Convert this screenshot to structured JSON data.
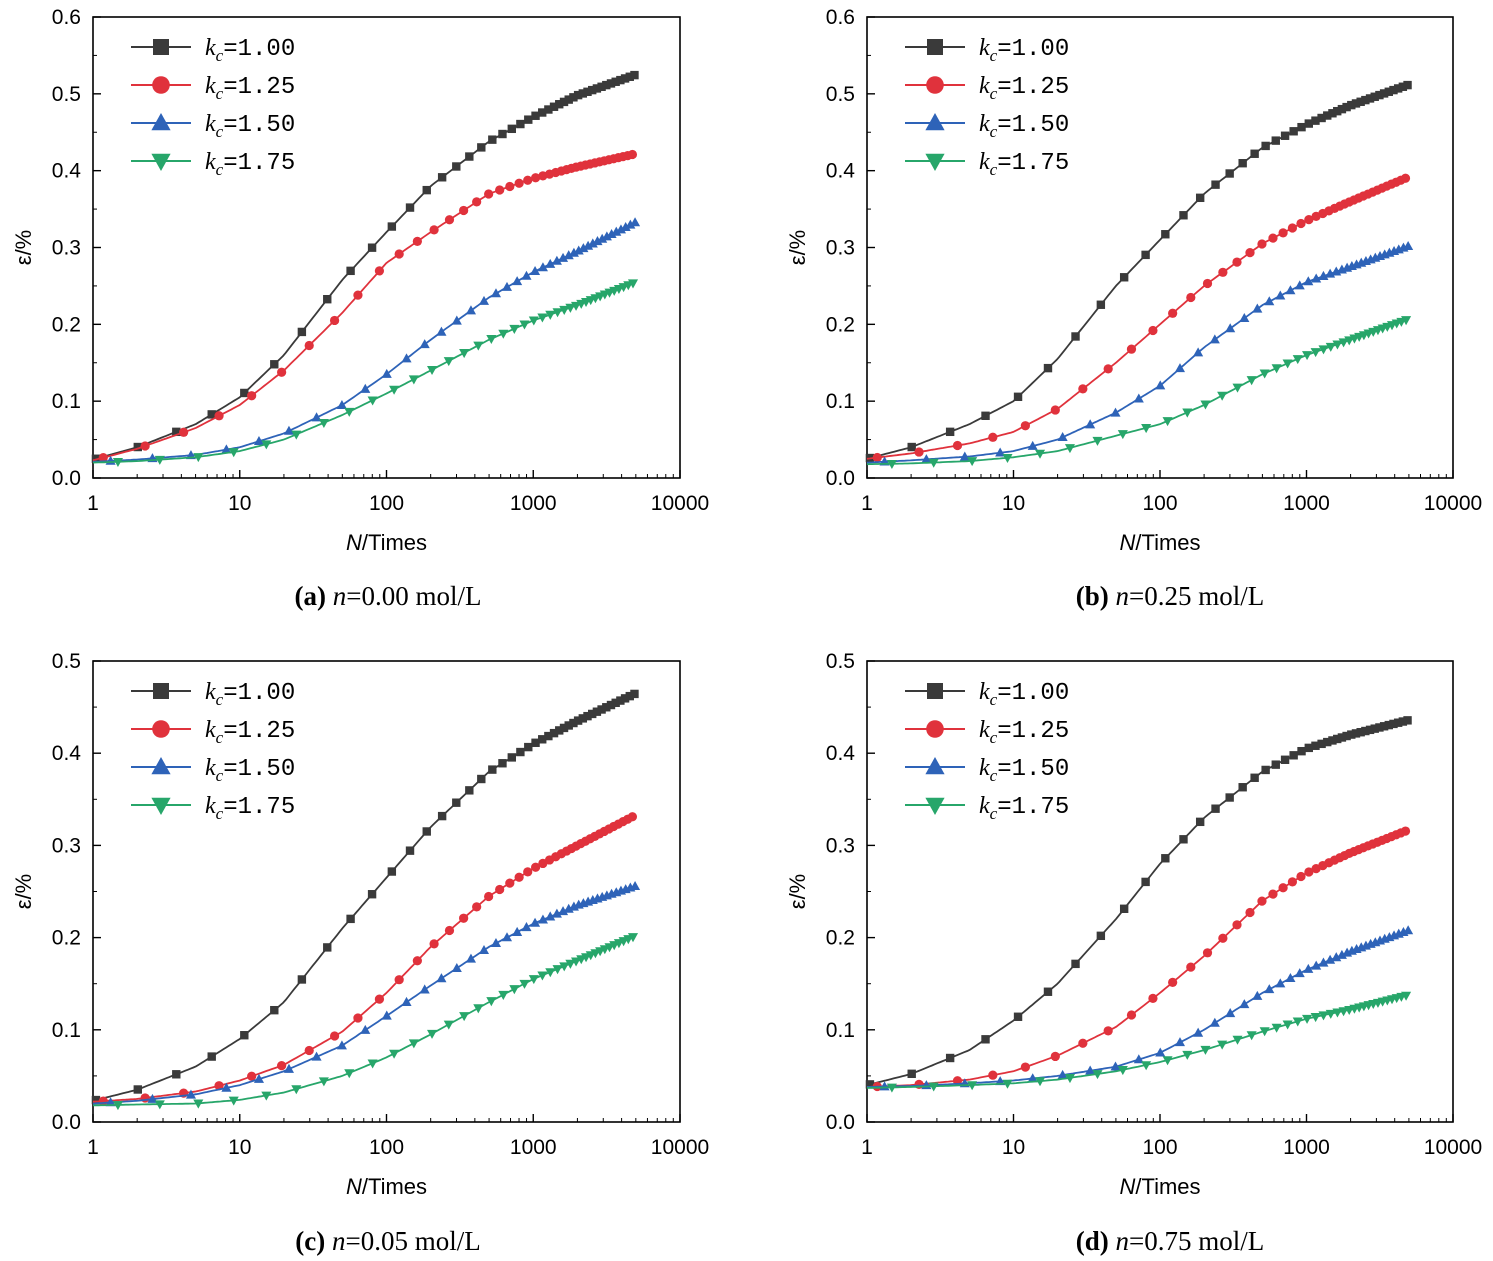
{
  "chart_data": [
    {
      "type": "line",
      "panel": "a",
      "caption": {
        "letter": "(a)",
        "var": "n",
        "value": "=0.00 mol/L"
      },
      "xlabel": {
        "var": "N",
        "unit": "/Times"
      },
      "ylabel": "ε/%",
      "xscale": "log",
      "xlim": [
        1,
        10000
      ],
      "ylim": [
        0,
        0.6
      ],
      "xticks": [
        1,
        10,
        100,
        1000,
        10000
      ],
      "xtick_labels": [
        "1",
        "10",
        "100",
        "1000",
        "10000"
      ],
      "yticks": [
        0,
        0.1,
        0.2,
        0.3,
        0.4,
        0.5,
        0.6
      ],
      "ytick_labels": [
        "0.0",
        "0.1",
        "0.2",
        "0.3",
        "0.4",
        "0.5",
        "0.6"
      ],
      "legend_position": "top-left",
      "series": [
        {
          "name": "kc=1.00",
          "label_sub": "c",
          "label_value": "=1.00",
          "color": "#3a3a3a",
          "marker": "square",
          "x": [
            1,
            2,
            5,
            10,
            20,
            50,
            100,
            200,
            500,
            1000,
            2000,
            5000
          ],
          "y": [
            0.024,
            0.04,
            0.07,
            0.105,
            0.16,
            0.258,
            0.32,
            0.38,
            0.438,
            0.47,
            0.498,
            0.525
          ]
        },
        {
          "name": "kc=1.25",
          "label_sub": "c",
          "label_value": "=1.25",
          "color": "#e0323c",
          "marker": "circle",
          "x": [
            1,
            2,
            5,
            10,
            20,
            50,
            100,
            200,
            500,
            1000,
            2000,
            5000
          ],
          "y": [
            0.023,
            0.038,
            0.065,
            0.095,
            0.14,
            0.215,
            0.28,
            0.32,
            0.37,
            0.39,
            0.405,
            0.422
          ]
        },
        {
          "name": "kc=1.50",
          "label_sub": "c",
          "label_value": "=1.50",
          "color": "#2e63b8",
          "marker": "triangle-up",
          "x": [
            1,
            2,
            5,
            10,
            20,
            50,
            100,
            200,
            500,
            1000,
            2000,
            5000
          ],
          "y": [
            0.021,
            0.024,
            0.03,
            0.04,
            0.058,
            0.095,
            0.135,
            0.18,
            0.235,
            0.268,
            0.295,
            0.333
          ]
        },
        {
          "name": "kc=1.75",
          "label_sub": "c",
          "label_value": "=1.75",
          "color": "#27a66a",
          "marker": "triangle-down",
          "x": [
            1,
            2,
            5,
            10,
            20,
            50,
            100,
            200,
            500,
            1000,
            2000,
            5000
          ],
          "y": [
            0.02,
            0.022,
            0.027,
            0.035,
            0.05,
            0.082,
            0.11,
            0.14,
            0.18,
            0.205,
            0.225,
            0.255
          ]
        }
      ]
    },
    {
      "type": "line",
      "panel": "b",
      "caption": {
        "letter": "(b)",
        "var": "n",
        "value": "=0.25 mol/L"
      },
      "xlabel": {
        "var": "N",
        "unit": "/Times"
      },
      "ylabel": "ε/%",
      "xscale": "log",
      "xlim": [
        1,
        10000
      ],
      "ylim": [
        0,
        0.6
      ],
      "xticks": [
        1,
        10,
        100,
        1000,
        10000
      ],
      "xtick_labels": [
        "1",
        "10",
        "100",
        "1000",
        "10000"
      ],
      "yticks": [
        0,
        0.1,
        0.2,
        0.3,
        0.4,
        0.5,
        0.6
      ],
      "ytick_labels": [
        "0.0",
        "0.1",
        "0.2",
        "0.3",
        "0.4",
        "0.5",
        "0.6"
      ],
      "legend_position": "top-left",
      "series": [
        {
          "name": "kc=1.00",
          "label_sub": "c",
          "label_value": "=1.00",
          "color": "#3a3a3a",
          "marker": "square",
          "x": [
            1,
            2,
            5,
            10,
            20,
            50,
            100,
            200,
            500,
            1000,
            2000,
            5000
          ],
          "y": [
            0.025,
            0.04,
            0.07,
            0.1,
            0.155,
            0.25,
            0.31,
            0.37,
            0.43,
            0.46,
            0.485,
            0.512
          ]
        },
        {
          "name": "kc=1.25",
          "label_sub": "c",
          "label_value": "=1.25",
          "color": "#e0323c",
          "marker": "circle",
          "x": [
            1,
            2,
            5,
            10,
            20,
            50,
            100,
            200,
            500,
            1000,
            2000,
            5000
          ],
          "y": [
            0.025,
            0.032,
            0.045,
            0.06,
            0.09,
            0.15,
            0.2,
            0.25,
            0.305,
            0.335,
            0.36,
            0.392
          ]
        },
        {
          "name": "kc=1.50",
          "label_sub": "c",
          "label_value": "=1.50",
          "color": "#2e63b8",
          "marker": "triangle-up",
          "x": [
            1,
            2,
            5,
            10,
            20,
            50,
            100,
            200,
            500,
            1000,
            2000,
            5000
          ],
          "y": [
            0.02,
            0.023,
            0.028,
            0.035,
            0.05,
            0.085,
            0.12,
            0.17,
            0.225,
            0.255,
            0.275,
            0.302
          ]
        },
        {
          "name": "kc=1.75",
          "label_sub": "c",
          "label_value": "=1.75",
          "color": "#27a66a",
          "marker": "triangle-down",
          "x": [
            1,
            2,
            5,
            10,
            20,
            50,
            100,
            200,
            500,
            1000,
            2000,
            5000
          ],
          "y": [
            0.018,
            0.019,
            0.022,
            0.027,
            0.035,
            0.055,
            0.07,
            0.095,
            0.135,
            0.16,
            0.18,
            0.207
          ]
        }
      ]
    },
    {
      "type": "line",
      "panel": "c",
      "caption": {
        "letter": "(c)",
        "var": "n",
        "value": "=0.05 mol/L"
      },
      "xlabel": {
        "var": "N",
        "unit": "/Times"
      },
      "ylabel": "ε/%",
      "xscale": "log",
      "xlim": [
        1,
        10000
      ],
      "ylim": [
        0,
        0.5
      ],
      "xticks": [
        1,
        10,
        100,
        1000,
        10000
      ],
      "xtick_labels": [
        "1",
        "10",
        "100",
        "1000",
        "10000"
      ],
      "yticks": [
        0,
        0.1,
        0.2,
        0.3,
        0.4,
        0.5
      ],
      "ytick_labels": [
        "0.0",
        "0.1",
        "0.2",
        "0.3",
        "0.4",
        "0.5"
      ],
      "legend_position": "top-left",
      "series": [
        {
          "name": "kc=1.00",
          "label_sub": "c",
          "label_value": "=1.00",
          "color": "#3a3a3a",
          "marker": "square",
          "x": [
            1,
            2,
            5,
            10,
            20,
            50,
            100,
            200,
            500,
            1000,
            2000,
            5000
          ],
          "y": [
            0.023,
            0.035,
            0.06,
            0.09,
            0.13,
            0.21,
            0.265,
            0.32,
            0.38,
            0.41,
            0.435,
            0.465
          ]
        },
        {
          "name": "kc=1.25",
          "label_sub": "c",
          "label_value": "=1.25",
          "color": "#e0323c",
          "marker": "circle",
          "x": [
            1,
            2,
            5,
            10,
            20,
            50,
            100,
            200,
            500,
            1000,
            2000,
            5000
          ],
          "y": [
            0.022,
            0.025,
            0.033,
            0.045,
            0.062,
            0.098,
            0.14,
            0.19,
            0.245,
            0.275,
            0.3,
            0.333
          ]
        },
        {
          "name": "kc=1.50",
          "label_sub": "c",
          "label_value": "=1.50",
          "color": "#2e63b8",
          "marker": "triangle-up",
          "x": [
            1,
            2,
            5,
            10,
            20,
            50,
            100,
            200,
            500,
            1000,
            2000,
            5000
          ],
          "y": [
            0.02,
            0.023,
            0.03,
            0.04,
            0.055,
            0.083,
            0.115,
            0.148,
            0.19,
            0.215,
            0.235,
            0.256
          ]
        },
        {
          "name": "kc=1.75",
          "label_sub": "c",
          "label_value": "=1.75",
          "color": "#27a66a",
          "marker": "triangle-down",
          "x": [
            1,
            2,
            5,
            10,
            20,
            50,
            100,
            200,
            500,
            1000,
            2000,
            5000
          ],
          "y": [
            0.018,
            0.019,
            0.02,
            0.024,
            0.032,
            0.05,
            0.07,
            0.095,
            0.13,
            0.155,
            0.175,
            0.202
          ]
        }
      ]
    },
    {
      "type": "line",
      "panel": "d",
      "caption": {
        "letter": "(d)",
        "var": "n",
        "value": "=0.75 mol/L"
      },
      "xlabel": {
        "var": "N",
        "unit": "/Times"
      },
      "ylabel": "ε/%",
      "xscale": "log",
      "xlim": [
        1,
        10000
      ],
      "ylim": [
        0,
        0.5
      ],
      "xticks": [
        1,
        10,
        100,
        1000,
        10000
      ],
      "xtick_labels": [
        "1",
        "10",
        "100",
        "1000",
        "10000"
      ],
      "yticks": [
        0,
        0.1,
        0.2,
        0.3,
        0.4,
        0.5
      ],
      "ytick_labels": [
        "0.0",
        "0.1",
        "0.2",
        "0.3",
        "0.4",
        "0.5"
      ],
      "legend_position": "top-left",
      "series": [
        {
          "name": "kc=1.00",
          "label_sub": "c",
          "label_value": "=1.00",
          "color": "#3a3a3a",
          "marker": "square",
          "x": [
            1,
            2,
            5,
            10,
            20,
            50,
            100,
            200,
            500,
            1000,
            2000,
            5000
          ],
          "y": [
            0.04,
            0.052,
            0.078,
            0.11,
            0.15,
            0.22,
            0.28,
            0.33,
            0.38,
            0.405,
            0.42,
            0.436
          ]
        },
        {
          "name": "kc=1.25",
          "label_sub": "c",
          "label_value": "=1.25",
          "color": "#e0323c",
          "marker": "circle",
          "x": [
            1,
            2,
            5,
            10,
            20,
            50,
            100,
            200,
            500,
            1000,
            2000,
            5000
          ],
          "y": [
            0.038,
            0.04,
            0.046,
            0.055,
            0.072,
            0.103,
            0.14,
            0.18,
            0.24,
            0.27,
            0.292,
            0.317
          ]
        },
        {
          "name": "kc=1.50",
          "label_sub": "c",
          "label_value": "=1.50",
          "color": "#2e63b8",
          "marker": "triangle-up",
          "x": [
            1,
            2,
            5,
            10,
            20,
            50,
            100,
            200,
            500,
            1000,
            2000,
            5000
          ],
          "y": [
            0.038,
            0.039,
            0.042,
            0.045,
            0.05,
            0.06,
            0.075,
            0.1,
            0.14,
            0.165,
            0.185,
            0.208
          ]
        },
        {
          "name": "kc=1.75",
          "label_sub": "c",
          "label_value": "=1.75",
          "color": "#27a66a",
          "marker": "triangle-down",
          "x": [
            1,
            2,
            5,
            10,
            20,
            50,
            100,
            200,
            500,
            1000,
            2000,
            5000
          ],
          "y": [
            0.037,
            0.038,
            0.04,
            0.042,
            0.046,
            0.055,
            0.065,
            0.078,
            0.098,
            0.112,
            0.122,
            0.138
          ]
        }
      ]
    }
  ]
}
